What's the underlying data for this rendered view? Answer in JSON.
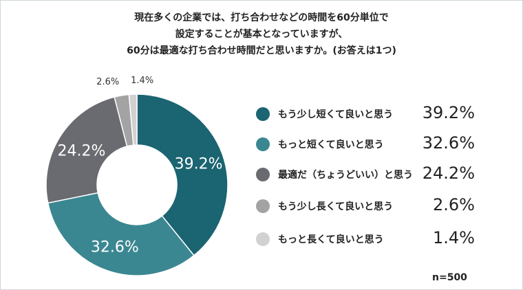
{
  "question": {
    "line1": "現在多くの企業では、打ち合わせなどの時間を60分単位で",
    "line2": "設定することが基本となっていますが、",
    "line3": "60分は最適な打ち合わせ時間だと思いますか。(お答えは1つ)"
  },
  "sample": "n=500",
  "chart_data": {
    "type": "pie",
    "donut": true,
    "categories": [
      "もう少し短くて良いと思う",
      "もっと短くて良いと思う",
      "最適だ（ちょうどいい）と思う",
      "もう少し長くて良いと思う",
      "もっと長くて良いと思う"
    ],
    "values": [
      39.2,
      32.6,
      24.2,
      2.6,
      1.4
    ],
    "value_labels": [
      "39.2%",
      "32.6%",
      "24.2%",
      "2.6%",
      "1.4%"
    ],
    "colors": [
      "#1b6471",
      "#3a8791",
      "#6a6b70",
      "#a3a3a3",
      "#d1d1d1"
    ],
    "legend_position": "right"
  }
}
